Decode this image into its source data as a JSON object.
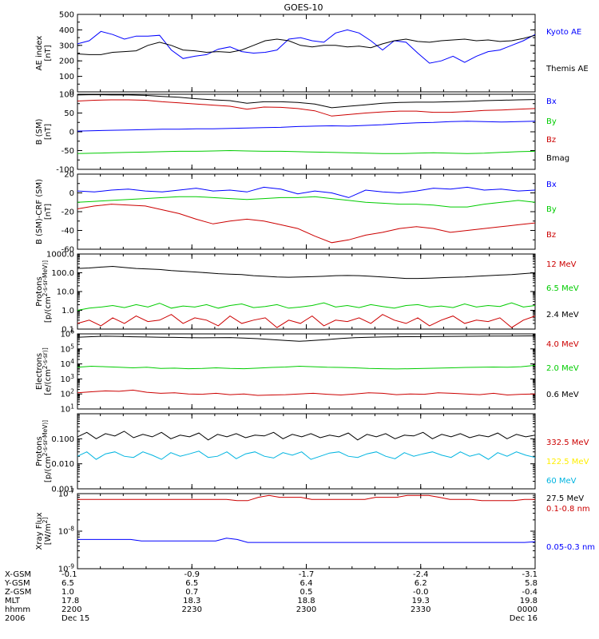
{
  "title": "GOES-10",
  "colors": {
    "black": "#000000",
    "blue": "#0000ff",
    "green": "#00cc00",
    "red": "#cc0000",
    "yellow": "#ffee00",
    "cyan": "#00b4e0"
  },
  "chart_data": [
    {
      "type": "line",
      "ylabel": "AE index [nT]",
      "scale": "linear",
      "ylim": [
        0,
        500
      ],
      "yticks": [
        0,
        100,
        200,
        300,
        400,
        500
      ],
      "ytick_labels": [
        "0",
        "100",
        "200",
        "300",
        "400",
        "500"
      ],
      "series": [
        {
          "name": "Kyoto AE",
          "color": "#0000ff",
          "values": [
            310,
            330,
            390,
            370,
            340,
            360,
            360,
            365,
            270,
            215,
            230,
            240,
            275,
            290,
            260,
            250,
            255,
            270,
            340,
            350,
            330,
            320,
            380,
            400,
            380,
            330,
            270,
            330,
            320,
            250,
            185,
            200,
            230,
            190,
            230,
            260,
            270,
            300,
            330,
            370
          ]
        },
        {
          "name": "Themis AE",
          "color": "#000000",
          "values": [
            245,
            240,
            240,
            255,
            260,
            265,
            300,
            320,
            300,
            270,
            265,
            255,
            260,
            255,
            270,
            300,
            330,
            340,
            330,
            300,
            290,
            300,
            300,
            290,
            295,
            285,
            310,
            330,
            340,
            325,
            320,
            330,
            335,
            340,
            330,
            335,
            325,
            330,
            345,
            365
          ]
        }
      ]
    },
    {
      "type": "line",
      "ylabel": "B (SM) [nT]",
      "scale": "linear",
      "ylim": [
        -100,
        100
      ],
      "yticks": [
        -100,
        -50,
        0,
        50,
        100
      ],
      "ytick_labels": [
        "-100",
        "-50",
        "0",
        "50",
        "100"
      ],
      "series": [
        {
          "name": "Bx",
          "color": "#0000ff",
          "values": [
            2,
            3,
            4,
            5,
            6,
            7,
            7,
            8,
            8,
            9,
            10,
            11,
            12,
            14,
            15,
            16,
            15,
            17,
            19,
            22,
            24,
            25,
            27,
            28,
            27,
            26,
            27,
            28
          ]
        },
        {
          "name": "By",
          "color": "#00cc00",
          "values": [
            -58,
            -57,
            -56,
            -55,
            -54,
            -53,
            -52,
            -52,
            -51,
            -50,
            -51,
            -52,
            -52,
            -53,
            -54,
            -55,
            -56,
            -57,
            -58,
            -58,
            -57,
            -56,
            -57,
            -58,
            -57,
            -55,
            -53,
            -52
          ]
        },
        {
          "name": "Bz",
          "color": "#cc0000",
          "values": [
            82,
            84,
            85,
            85,
            84,
            80,
            77,
            74,
            71,
            68,
            60,
            66,
            65,
            62,
            56,
            42,
            46,
            50,
            53,
            55,
            55,
            52,
            52,
            54,
            57,
            58,
            60,
            62
          ]
        },
        {
          "name": "Bmag",
          "color": "#000000",
          "values": [
            98,
            99,
            98,
            98,
            97,
            94,
            92,
            88,
            85,
            83,
            76,
            80,
            80,
            78,
            74,
            64,
            68,
            72,
            76,
            78,
            79,
            79,
            80,
            81,
            83,
            84,
            85,
            86
          ]
        }
      ]
    },
    {
      "type": "line",
      "ylabel": "B (SM)-CRF (SM) [nT]",
      "scale": "linear",
      "ylim": [
        -60,
        20
      ],
      "yticks": [
        -60,
        -40,
        -20,
        0,
        20
      ],
      "ytick_labels": [
        "-60",
        "-40",
        "-20",
        "0",
        "20"
      ],
      "series": [
        {
          "name": "Bx",
          "color": "#0000ff",
          "values": [
            2,
            1,
            3,
            4,
            2,
            1,
            3,
            5,
            2,
            3,
            1,
            6,
            4,
            -1,
            2,
            0,
            -5,
            3,
            1,
            0,
            2,
            5,
            4,
            6,
            3,
            4,
            2,
            3
          ]
        },
        {
          "name": "By",
          "color": "#00cc00",
          "values": [
            -10,
            -9,
            -8,
            -7,
            -6,
            -5,
            -4,
            -4,
            -5,
            -6,
            -7,
            -6,
            -5,
            -5,
            -4,
            -6,
            -8,
            -10,
            -11,
            -12,
            -12,
            -13,
            -15,
            -15,
            -12,
            -10,
            -8,
            -10
          ]
        },
        {
          "name": "Bz",
          "color": "#cc0000",
          "values": [
            -17,
            -14,
            -12,
            -13,
            -14,
            -18,
            -22,
            -28,
            -33,
            -30,
            -28,
            -30,
            -34,
            -38,
            -46,
            -53,
            -50,
            -45,
            -42,
            -38,
            -36,
            -38,
            -42,
            -40,
            -38,
            -36,
            -34,
            -32
          ]
        }
      ]
    },
    {
      "type": "line",
      "ylabel": "Protons [p/(cm^2-s-sr-MeV)]",
      "scale": "log",
      "ylim": [
        0.1,
        1000
      ],
      "yticks": [
        0.1,
        1,
        10,
        100,
        1000
      ],
      "ytick_labels": [
        "0.1",
        "1.0",
        "10.0",
        "100.0",
        "1000.0"
      ],
      "series": [
        {
          "name": "12 MeV",
          "color": "#cc0000",
          "values": [
            0.2,
            0.3,
            0.15,
            0.4,
            0.2,
            0.5,
            0.25,
            0.3,
            0.6,
            0.2,
            0.4,
            0.3,
            0.15,
            0.5,
            0.2,
            0.3,
            0.4,
            0.12,
            0.3,
            0.2,
            0.5,
            0.15,
            0.3,
            0.25,
            0.4,
            0.2,
            0.6,
            0.3,
            0.2,
            0.4,
            0.15,
            0.3,
            0.5,
            0.2,
            0.3,
            0.25,
            0.4,
            0.12,
            0.3,
            0.5
          ]
        },
        {
          "name": "6.5 MeV",
          "color": "#00cc00",
          "values": [
            1.0,
            1.3,
            1.5,
            1.8,
            1.4,
            2.0,
            1.5,
            2.4,
            1.3,
            1.7,
            1.5,
            2.0,
            1.3,
            1.8,
            2.2,
            1.4,
            1.6,
            2.0,
            1.3,
            1.5,
            1.8,
            2.5,
            1.5,
            1.8,
            1.4,
            2.0,
            1.6,
            1.3,
            1.8,
            2.0,
            1.5,
            1.7,
            1.4,
            2.2,
            1.5,
            1.8,
            1.6,
            2.5,
            1.5,
            1.8
          ]
        },
        {
          "name": "2.4 MeV",
          "color": "#000000",
          "values": [
            170,
            180,
            200,
            220,
            190,
            170,
            160,
            150,
            130,
            120,
            110,
            100,
            90,
            85,
            80,
            70,
            65,
            60,
            58,
            60,
            62,
            65,
            70,
            72,
            70,
            65,
            60,
            55,
            50,
            50,
            52,
            55,
            58,
            60,
            65,
            70,
            75,
            80,
            90,
            100
          ]
        }
      ]
    },
    {
      "type": "line",
      "ylabel": "Electrons [e/(cm^2-s-sr)]",
      "scale": "log",
      "ylim": [
        10,
        1000000
      ],
      "yticks": [
        10,
        100,
        1000,
        10000,
        100000,
        1000000
      ],
      "ytick_labels": [
        "10^1",
        "10^2",
        "10^3",
        "10^4",
        "10^5",
        "10^6"
      ],
      "series": [
        {
          "name": "4.0 MeV",
          "color": "#cc0000",
          "values": [
            120,
            140,
            160,
            150,
            180,
            130,
            110,
            120,
            100,
            95,
            110,
            90,
            100,
            80,
            85,
            90,
            100,
            110,
            95,
            85,
            100,
            120,
            110,
            90,
            100,
            95,
            120,
            110,
            100,
            90,
            110,
            85,
            95,
            100
          ]
        },
        {
          "name": "2.0 MeV",
          "color": "#00cc00",
          "values": [
            6000,
            7000,
            6500,
            6000,
            5500,
            6000,
            5000,
            5200,
            4800,
            5000,
            5500,
            5000,
            4800,
            5200,
            5800,
            6200,
            7000,
            6500,
            6000,
            5800,
            5500,
            5000,
            4800,
            4600,
            4800,
            5000,
            5200,
            5500,
            5800,
            6000,
            6200,
            6000,
            6500,
            8000
          ]
        },
        {
          "name": "0.6 MeV",
          "color": "#000000",
          "values": [
            600000,
            650000,
            700000,
            680000,
            640000,
            620000,
            600000,
            580000,
            560000,
            550000,
            560000,
            570000,
            520000,
            480000,
            420000,
            360000,
            320000,
            360000,
            420000,
            500000,
            560000,
            600000,
            620000,
            640000,
            650000,
            660000,
            670000,
            680000,
            690000,
            700000,
            710000,
            720000,
            730000,
            740000
          ]
        }
      ]
    },
    {
      "type": "line",
      "ylabel": "Protons [p/(cm^2-s-sr-MeV)]",
      "scale": "log",
      "ylim": [
        0.001,
        1
      ],
      "yticks": [
        0.001,
        0.01,
        0.1
      ],
      "ytick_labels": [
        "0.001",
        "0.010",
        "0.100"
      ],
      "series": [
        {
          "name": "332.5 MeV",
          "color": "#cc0000",
          "values": []
        },
        {
          "name": "122.5 MeV",
          "color": "#ffee00",
          "values": []
        },
        {
          "name": "60 MeV",
          "color": "#00b4e0",
          "values": [
            0.02,
            0.03,
            0.015,
            0.025,
            0.03,
            0.02,
            0.018,
            0.03,
            0.022,
            0.015,
            0.028,
            0.02,
            0.025,
            0.032,
            0.018,
            0.02,
            0.03,
            0.016,
            0.025,
            0.03,
            0.02,
            0.017,
            0.028,
            0.022,
            0.03,
            0.015,
            0.02,
            0.027,
            0.03,
            0.02,
            0.018,
            0.025,
            0.03,
            0.02,
            0.016,
            0.028,
            0.02,
            0.025,
            0.03,
            0.022,
            0.018,
            0.03,
            0.02,
            0.025,
            0.015,
            0.028,
            0.02,
            0.03,
            0.022,
            0.018
          ]
        },
        {
          "name": "27.5 MeV",
          "color": "#000000",
          "values": [
            0.12,
            0.18,
            0.1,
            0.16,
            0.13,
            0.2,
            0.11,
            0.15,
            0.12,
            0.18,
            0.1,
            0.14,
            0.12,
            0.17,
            0.09,
            0.15,
            0.12,
            0.16,
            0.11,
            0.14,
            0.13,
            0.18,
            0.1,
            0.15,
            0.12,
            0.16,
            0.11,
            0.14,
            0.12,
            0.17,
            0.09,
            0.15,
            0.12,
            0.16,
            0.1,
            0.14,
            0.13,
            0.18,
            0.1,
            0.15,
            0.12,
            0.16,
            0.11,
            0.14,
            0.12,
            0.17,
            0.1,
            0.15,
            0.12,
            0.14
          ]
        }
      ]
    },
    {
      "type": "line",
      "ylabel": "Xray Flux [W/m^2]",
      "scale": "log",
      "ylim": [
        1e-09,
        1e-07
      ],
      "yticks": [
        1e-09,
        1e-08,
        1e-07
      ],
      "ytick_labels": [
        "10^-9",
        "10^-8",
        "10^-7"
      ],
      "series": [
        {
          "name": "0.1-0.8 nm",
          "color": "#cc0000",
          "values": [
            7e-08,
            7e-08,
            7e-08,
            7e-08,
            7e-08,
            7e-08,
            7e-08,
            7e-08,
            7e-08,
            7e-08,
            7e-08,
            7e-08,
            7e-08,
            7e-08,
            7e-08,
            6.5e-08,
            6.5e-08,
            8e-08,
            9e-08,
            8e-08,
            8e-08,
            8e-08,
            7e-08,
            7e-08,
            7e-08,
            7e-08,
            7e-08,
            7e-08,
            8e-08,
            8e-08,
            8e-08,
            9e-08,
            9e-08,
            9e-08,
            8e-08,
            7e-08,
            7e-08,
            7e-08,
            6.5e-08,
            6.5e-08,
            6.5e-08,
            6.5e-08,
            7e-08,
            7e-08
          ]
        },
        {
          "name": "0.05-0.3 nm",
          "color": "#0000ff",
          "values": [
            6e-09,
            6e-09,
            6e-09,
            6e-09,
            6e-09,
            6e-09,
            5.5e-09,
            5.5e-09,
            5.5e-09,
            5.5e-09,
            5.5e-09,
            5.5e-09,
            5.5e-09,
            5.5e-09,
            6.5e-09,
            6e-09,
            5e-09,
            5e-09,
            5e-09,
            5e-09,
            5e-09,
            5e-09,
            5e-09,
            5e-09,
            5e-09,
            5e-09,
            5e-09,
            5e-09,
            5e-09,
            5e-09,
            5e-09,
            5e-09,
            5e-09,
            5e-09,
            5e-09,
            5e-09,
            5e-09,
            5e-09,
            5e-09,
            5e-09,
            5e-09,
            5e-09,
            5e-09,
            5.2e-09
          ]
        }
      ]
    }
  ],
  "legends": [
    [
      {
        "text": "Kyoto AE",
        "color": "#0000ff"
      },
      {
        "text": "Themis AE",
        "color": "#000000"
      }
    ],
    [
      {
        "text": "Bx",
        "color": "#0000ff"
      },
      {
        "text": "By",
        "color": "#00cc00"
      },
      {
        "text": "Bz",
        "color": "#cc0000"
      },
      {
        "text": "Bmag",
        "color": "#000000"
      }
    ],
    [
      {
        "text": "Bx",
        "color": "#0000ff"
      },
      {
        "text": "By",
        "color": "#00cc00"
      },
      {
        "text": "Bz",
        "color": "#cc0000"
      }
    ],
    [
      {
        "text": "12 MeV",
        "color": "#cc0000"
      },
      {
        "text": "6.5 MeV",
        "color": "#00cc00"
      },
      {
        "text": "2.4 MeV",
        "color": "#000000"
      }
    ],
    [
      {
        "text": "4.0 MeV",
        "color": "#cc0000"
      },
      {
        "text": "2.0 MeV",
        "color": "#00cc00"
      },
      {
        "text": "0.6 MeV",
        "color": "#000000"
      }
    ],
    [
      {
        "text": "332.5 MeV",
        "color": "#cc0000"
      },
      {
        "text": "122.5 MeV",
        "color": "#ffee00"
      },
      {
        "text": "60 MeV",
        "color": "#00b4e0"
      },
      {
        "text": "27.5 MeV",
        "color": "#000000"
      }
    ],
    [
      {
        "text": "0.1-0.8 nm",
        "color": "#cc0000"
      },
      {
        "text": "0.05-0.3 nm",
        "color": "#0000ff"
      }
    ]
  ],
  "orbit_table": {
    "row_labels": [
      "X-GSM",
      "Y-GSM",
      "Z-GSM",
      "MLT",
      "hhmm",
      "2006"
    ],
    "columns": [
      [
        "-0.1",
        "6.5",
        "1.0",
        "17.8",
        "2200",
        "Dec 15"
      ],
      [
        "-0.9",
        "6.5",
        "0.7",
        "18.3",
        "2230",
        ""
      ],
      [
        "-1.7",
        "6.4",
        "0.5",
        "18.8",
        "2300",
        ""
      ],
      [
        "-2.4",
        "6.2",
        "-0.0",
        "19.3",
        "2330",
        ""
      ],
      [
        "-3.1",
        "5.8",
        "-0.4",
        "19.8",
        "0000",
        "Dec 16"
      ]
    ]
  }
}
